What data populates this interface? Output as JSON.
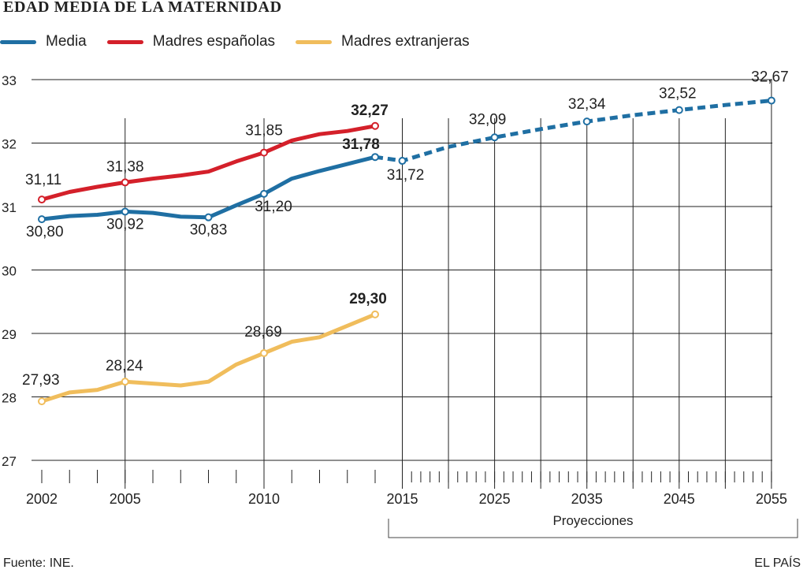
{
  "title": "EDAD MEDIA DE LA MATERNIDAD",
  "legend": [
    "Media",
    "Madres españolas",
    "Madres extranjeras"
  ],
  "source": "Fuente: INE.",
  "brand": "EL PAÍS",
  "colors": {
    "media": "#1f6fa3",
    "espanolas": "#d4202a",
    "extranjeras": "#f0bd5c",
    "grid": "#222222"
  },
  "chart_data": {
    "type": "line",
    "title": "EDAD MEDIA DE LA MATERNIDAD",
    "ylim": [
      27,
      33
    ],
    "y_ticks": [
      27,
      28,
      29,
      30,
      31,
      32,
      33
    ],
    "x_tick_labels": [
      "2002",
      "2005",
      "2010",
      "2015",
      "2025",
      "2035",
      "2045",
      "2055"
    ],
    "projection_label": "Proyecciones",
    "series": [
      {
        "name": "Media",
        "key": "media",
        "x": [
          2002,
          2003,
          2004,
          2005,
          2006,
          2007,
          2008,
          2009,
          2010,
          2011,
          2012,
          2013,
          2014
        ],
        "y": [
          30.8,
          30.85,
          30.87,
          30.92,
          30.9,
          30.84,
          30.83,
          31.02,
          31.2,
          31.44,
          31.56,
          31.67,
          31.78
        ],
        "markers": [
          [
            2002,
            30.8,
            "30,80"
          ],
          [
            2005,
            30.92,
            "30,92"
          ],
          [
            2008,
            30.83,
            "30,83"
          ],
          [
            2010,
            31.2,
            "31,20"
          ],
          [
            2014,
            31.78,
            "31,78"
          ]
        ]
      },
      {
        "name": "Madres españolas",
        "key": "espanolas",
        "x": [
          2002,
          2003,
          2004,
          2005,
          2006,
          2007,
          2008,
          2009,
          2010,
          2011,
          2012,
          2013,
          2014
        ],
        "y": [
          31.11,
          31.23,
          31.31,
          31.38,
          31.44,
          31.49,
          31.55,
          31.71,
          31.85,
          32.04,
          32.14,
          32.19,
          32.27
        ],
        "markers": [
          [
            2002,
            31.11,
            "31,11"
          ],
          [
            2005,
            31.38,
            "31,38"
          ],
          [
            2010,
            31.85,
            "31,85"
          ],
          [
            2014,
            32.27,
            "32,27"
          ]
        ]
      },
      {
        "name": "Madres extranjeras",
        "key": "extranjeras",
        "x": [
          2002,
          2003,
          2004,
          2005,
          2006,
          2007,
          2008,
          2009,
          2010,
          2011,
          2012,
          2013,
          2014
        ],
        "y": [
          27.93,
          28.07,
          28.11,
          28.24,
          28.21,
          28.18,
          28.24,
          28.51,
          28.69,
          28.87,
          28.94,
          29.12,
          29.3
        ],
        "markers": [
          [
            2002,
            27.93,
            "27,93"
          ],
          [
            2005,
            28.24,
            "28,24"
          ],
          [
            2010,
            28.69,
            "28,69"
          ],
          [
            2014,
            29.3,
            "29,30"
          ]
        ]
      },
      {
        "name": "Media",
        "key": "proyeccion",
        "x": [
          2014,
          2015,
          2020,
          2025,
          2030,
          2035,
          2040,
          2045,
          2050,
          2055
        ],
        "y": [
          31.78,
          31.72,
          31.94,
          32.09,
          32.22,
          32.34,
          32.44,
          32.52,
          32.6,
          32.67
        ],
        "markers": [
          [
            2015,
            31.72,
            "31,72"
          ],
          [
            2025,
            32.09,
            "32,09"
          ],
          [
            2035,
            32.34,
            "32,34"
          ],
          [
            2045,
            32.52,
            "32,52"
          ],
          [
            2055,
            32.67,
            "32,67"
          ]
        ]
      }
    ]
  }
}
